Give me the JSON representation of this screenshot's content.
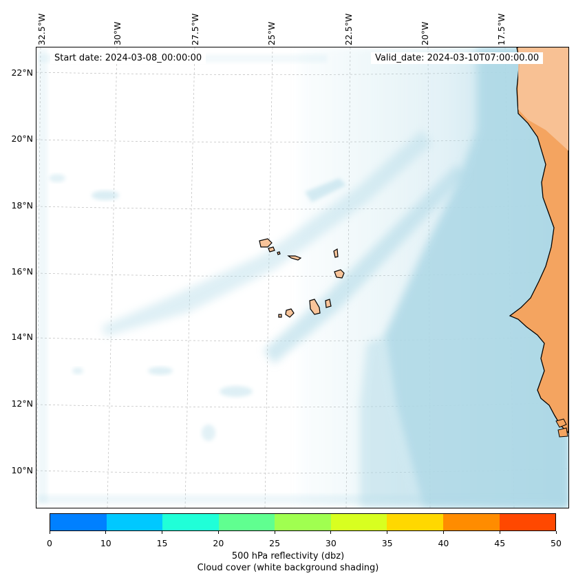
{
  "map": {
    "start_date": "Start date: 2024-03-08_00:00:00",
    "valid_date": "Valid_date: 2024-03-10T07:00:00.00",
    "lon_labels": [
      "32.5°W",
      "30°W",
      "27.5°W",
      "25°W",
      "22.5°W",
      "20°W",
      "17.5°W"
    ],
    "lat_labels": [
      "22°N",
      "20°N",
      "18°N",
      "16°N",
      "14°N",
      "12°N",
      "10°N"
    ],
    "colors": {
      "cloud": "#add8e6",
      "land": "#f4a460",
      "land_light": "#f8c49a",
      "coast": "#000000",
      "grid": "#bbbbbb"
    }
  },
  "colorbar": {
    "colors": [
      "#0080ff",
      "#00c8ff",
      "#20ffd8",
      "#60ff90",
      "#a0ff50",
      "#d8ff20",
      "#ffd800",
      "#ff8c00",
      "#ff4800"
    ],
    "ticks": [
      "0",
      "10",
      "15",
      "20",
      "25",
      "30",
      "35",
      "40",
      "45",
      "50"
    ],
    "label": "500 hPa reflectivity (dbz)",
    "sublabel": "Cloud cover (white background shading)"
  }
}
